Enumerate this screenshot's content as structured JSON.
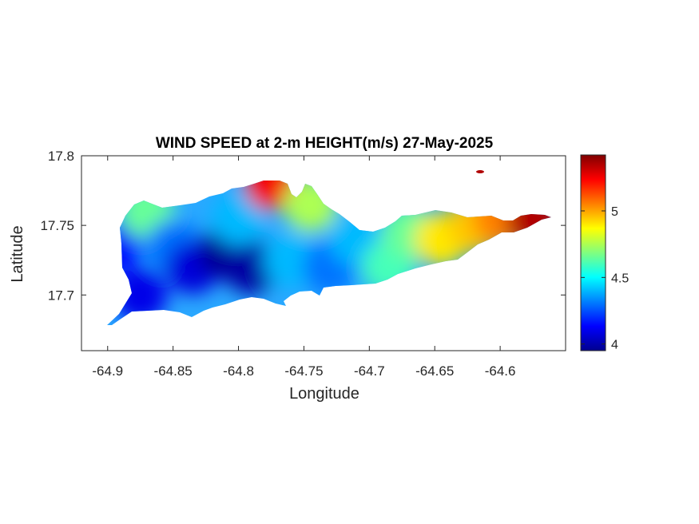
{
  "chart_data": {
    "type": "heatmap",
    "title": "WIND SPEED at 2-m HEIGHT(m/s) 27-May-2025",
    "xlabel": "Longitude",
    "ylabel": "Latitude",
    "xlim": [
      -64.92,
      -64.55
    ],
    "ylim": [
      17.66,
      17.8
    ],
    "x_ticks": [
      -64.9,
      -64.85,
      -64.8,
      -64.75,
      -64.7,
      -64.65,
      -64.6
    ],
    "x_tick_labels": [
      "-64.9",
      "-64.85",
      "-64.8",
      "-64.75",
      "-64.7",
      "-64.65",
      "-64.6"
    ],
    "y_ticks": [
      17.7,
      17.75,
      17.8
    ],
    "y_tick_labels": [
      "17.7",
      "17.75",
      "17.8"
    ],
    "colorbar": {
      "colormap": "jet",
      "clim": [
        3.95,
        5.42
      ],
      "ticks": [
        4,
        4.5,
        5
      ],
      "tick_labels": [
        "4",
        "4.5",
        "5"
      ]
    },
    "grid": false,
    "field_samples": [
      {
        "lon": -64.895,
        "lat": 17.735,
        "value": 4.15
      },
      {
        "lon": -64.875,
        "lat": 17.7,
        "value": 4.1
      },
      {
        "lon": -64.87,
        "lat": 17.76,
        "value": 4.65
      },
      {
        "lon": -64.85,
        "lat": 17.735,
        "value": 4.3
      },
      {
        "lon": -64.835,
        "lat": 17.72,
        "value": 4.08
      },
      {
        "lon": -64.81,
        "lat": 17.73,
        "value": 3.98
      },
      {
        "lon": -64.79,
        "lat": 17.72,
        "value": 4.0
      },
      {
        "lon": -64.8,
        "lat": 17.755,
        "value": 4.4
      },
      {
        "lon": -64.775,
        "lat": 17.78,
        "value": 5.25
      },
      {
        "lon": -64.76,
        "lat": 17.725,
        "value": 4.4
      },
      {
        "lon": -64.745,
        "lat": 17.765,
        "value": 4.75
      },
      {
        "lon": -64.73,
        "lat": 17.72,
        "value": 4.3
      },
      {
        "lon": -64.71,
        "lat": 17.74,
        "value": 4.4
      },
      {
        "lon": -64.685,
        "lat": 17.72,
        "value": 4.6
      },
      {
        "lon": -64.67,
        "lat": 17.745,
        "value": 4.65
      },
      {
        "lon": -64.645,
        "lat": 17.74,
        "value": 4.9
      },
      {
        "lon": -64.62,
        "lat": 17.75,
        "value": 4.95
      },
      {
        "lon": -64.6,
        "lat": 17.755,
        "value": 5.05
      },
      {
        "lon": -64.575,
        "lat": 17.755,
        "value": 5.35
      },
      {
        "lon": -64.625,
        "lat": 17.788,
        "value": 5.42
      }
    ]
  }
}
